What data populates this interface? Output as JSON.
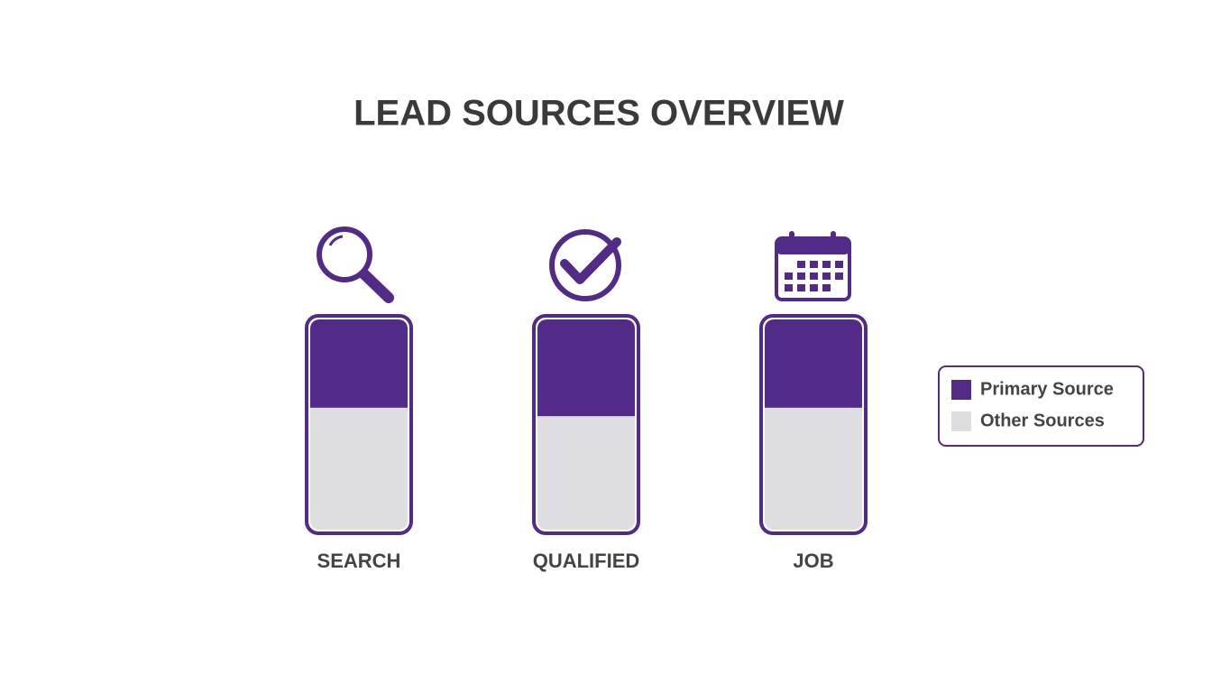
{
  "chart_data": {
    "type": "stacked-bar",
    "title": "LEAD SOURCES OVERVIEW",
    "categories": [
      "SEARCH",
      "QUALIFIED",
      "JOB"
    ],
    "series": [
      {
        "name": "Primary Source",
        "color": "#522a87",
        "values": [
          42,
          46,
          42
        ]
      },
      {
        "name": "Other Sources",
        "color": "#dedde0",
        "values": [
          58,
          54,
          58
        ]
      }
    ],
    "ylim": [
      0,
      100
    ],
    "legend": "right"
  }
}
